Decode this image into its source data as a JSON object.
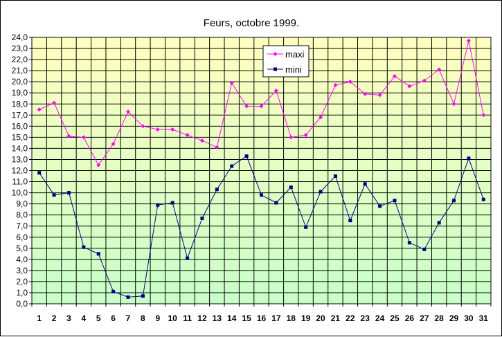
{
  "chart_data": {
    "type": "line",
    "title": "Feurs, octobre 1999.",
    "xlabel": "",
    "ylabel": "",
    "x": [
      1,
      2,
      3,
      4,
      5,
      6,
      7,
      8,
      9,
      10,
      11,
      12,
      13,
      14,
      15,
      16,
      17,
      18,
      19,
      20,
      21,
      22,
      23,
      24,
      25,
      26,
      27,
      28,
      29,
      30,
      31
    ],
    "ylim": [
      0,
      24
    ],
    "ytick_step": 1,
    "ytick_format": "comma-one-decimal",
    "grid": true,
    "legend_position": "top-center",
    "background_gradient": {
      "top": "#ffffc0",
      "bottom": "#c8ffc8"
    },
    "series": [
      {
        "name": "maxi",
        "color": "#ff00ff",
        "marker": "diamond",
        "values": [
          17.5,
          18.1,
          15.1,
          15.0,
          12.5,
          14.4,
          17.3,
          16.0,
          15.7,
          15.7,
          15.2,
          14.7,
          14.1,
          19.9,
          17.8,
          17.8,
          19.2,
          15.0,
          15.2,
          16.8,
          19.7,
          20.0,
          18.9,
          18.8,
          20.5,
          19.6,
          20.1,
          21.1,
          18.0,
          23.7,
          17.0
        ]
      },
      {
        "name": "mini",
        "color": "#000080",
        "marker": "square",
        "values": [
          11.8,
          9.8,
          10.0,
          5.1,
          4.5,
          1.1,
          0.6,
          0.7,
          8.9,
          9.1,
          4.1,
          7.7,
          10.3,
          12.4,
          13.3,
          9.8,
          9.1,
          10.5,
          6.9,
          10.1,
          11.5,
          7.5,
          10.8,
          8.8,
          9.3,
          5.5,
          4.9,
          7.3,
          9.3,
          13.1,
          9.4
        ]
      }
    ]
  }
}
